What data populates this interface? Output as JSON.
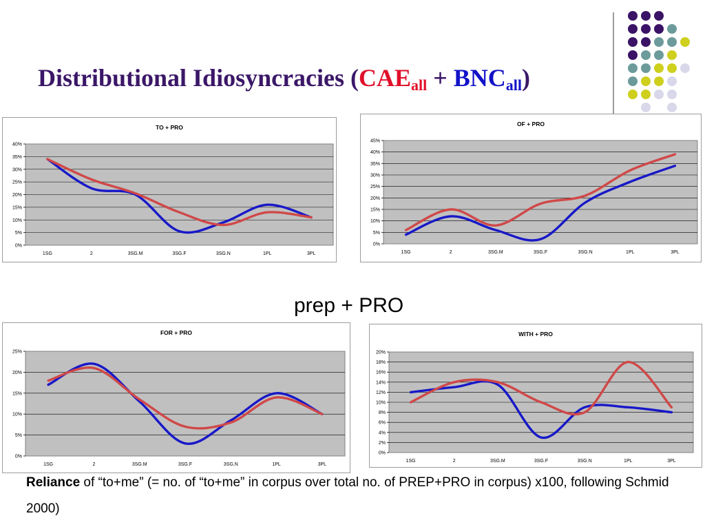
{
  "title": {
    "main": "Distributional Idiosyncracies (",
    "cae": "CAE",
    "cae_sub": "all",
    "plus": " + ",
    "bnc": "BNC",
    "bnc_sub": "all",
    "close": ")"
  },
  "mid_label": "prep + PRO",
  "note": {
    "bold": "Reliance",
    "text": " of “to+me” (= no. of “to+me” in corpus over total no. of PREP+PRO in corpus) x100, following Schmid 2000)"
  },
  "colors": {
    "title": "#3b1768",
    "cae": "#e0102a",
    "bnc": "#1212c8",
    "series_blue": "#1818c8",
    "series_red": "#d04848",
    "plot_bg": "#c0c0c0",
    "dot_purple": "#3b1366",
    "dot_teal": "#6d9b9b",
    "dot_yellow": "#cfcf1e",
    "dot_lavender": "#d8d8ea"
  },
  "decor_dots": [
    [
      "purple",
      "purple",
      "purple",
      null,
      null
    ],
    [
      "purple",
      "purple",
      "purple",
      "teal",
      null
    ],
    [
      "purple",
      "purple",
      "teal",
      "teal",
      "yellow"
    ],
    [
      "purple",
      "teal",
      "teal",
      "yellow",
      null
    ],
    [
      "teal",
      "teal",
      "yellow",
      "yellow",
      "lavender"
    ],
    [
      "teal",
      "yellow",
      "yellow",
      "lavender",
      null
    ],
    [
      "yellow",
      "yellow",
      "lavender",
      "lavender",
      null
    ],
    [
      null,
      "lavender",
      null,
      "lavender",
      null
    ]
  ],
  "chart_data": [
    {
      "type": "line",
      "title": "TO + PRO",
      "categories": [
        "1SG",
        "2",
        "3SG.M",
        "3SG.F",
        "3SG.N",
        "1PL",
        "3PL"
      ],
      "ylim": [
        0,
        40
      ],
      "yticks": [
        "0%",
        "5%",
        "10%",
        "15%",
        "20%",
        "25%",
        "30%",
        "35%",
        "40%"
      ],
      "grid": true,
      "series": [
        {
          "color": "blue",
          "values": [
            34,
            22.5,
            20,
            5.5,
            9,
            16,
            11
          ]
        },
        {
          "color": "red",
          "values": [
            34,
            26,
            20.5,
            13,
            8,
            13,
            11
          ]
        }
      ]
    },
    {
      "type": "line",
      "title": "OF + PRO",
      "categories": [
        "1SG",
        "2",
        "3SG.M",
        "3SG.F",
        "3SG.N",
        "1PL",
        "3PL"
      ],
      "ylim": [
        0,
        45
      ],
      "yticks": [
        "0%",
        "5%",
        "10%",
        "15%",
        "20%",
        "25%",
        "30%",
        "35%",
        "40%",
        "45%"
      ],
      "grid": true,
      "series": [
        {
          "color": "blue",
          "values": [
            4,
            12,
            6,
            2,
            18,
            27,
            34
          ]
        },
        {
          "color": "red",
          "values": [
            6,
            15,
            8,
            17.5,
            21,
            32,
            39
          ]
        }
      ]
    },
    {
      "type": "line",
      "title": "FOR + PRO",
      "categories": [
        "1SG",
        "2",
        "3SG.M",
        "3SG.F",
        "3SG.N",
        "1PL",
        "3PL"
      ],
      "ylim": [
        0,
        25
      ],
      "yticks": [
        "0%",
        "5%",
        "10%",
        "15%",
        "20%",
        "25%"
      ],
      "grid": true,
      "series": [
        {
          "color": "blue",
          "values": [
            17,
            22,
            13,
            3,
            8.5,
            15,
            10
          ]
        },
        {
          "color": "red",
          "values": [
            18,
            21,
            13.5,
            7,
            8,
            14,
            10
          ]
        }
      ]
    },
    {
      "type": "line",
      "title": "WITH + PRO",
      "categories": [
        "1SG",
        "2",
        "3SG.M",
        "3SG.F",
        "3SG.N",
        "1PL",
        "3PL"
      ],
      "ylim": [
        0,
        20
      ],
      "yticks": [
        "0%",
        "2%",
        "4%",
        "6%",
        "8%",
        "10%",
        "12%",
        "14%",
        "16%",
        "18%",
        "20%"
      ],
      "grid": true,
      "series": [
        {
          "color": "blue",
          "values": [
            12,
            13,
            13.5,
            3,
            9,
            9,
            8
          ]
        },
        {
          "color": "red",
          "values": [
            10,
            14,
            14,
            10,
            8,
            18,
            9
          ]
        }
      ]
    }
  ]
}
